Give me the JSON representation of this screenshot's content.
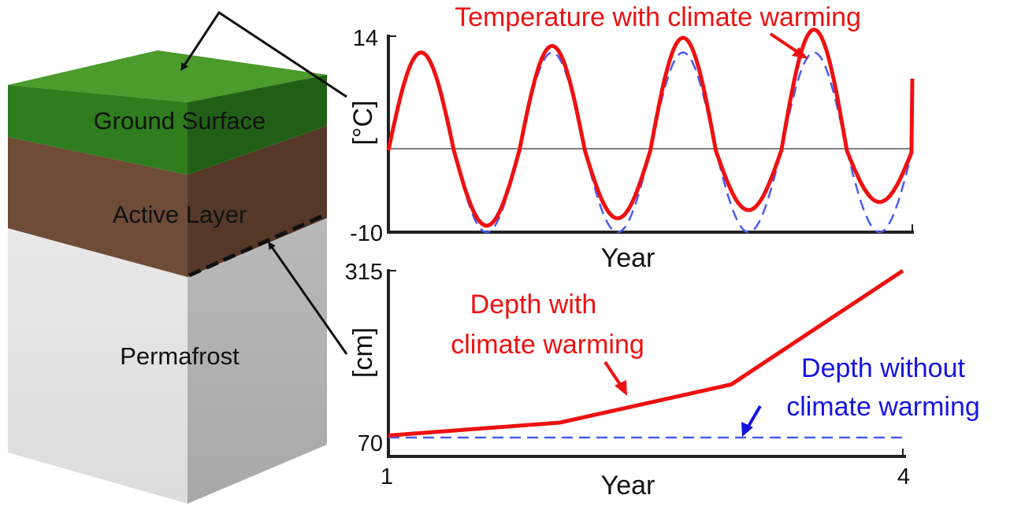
{
  "block": {
    "layers": [
      {
        "label": "Ground Surface",
        "color": "#2f7d1e"
      },
      {
        "label": "Active Layer",
        "color": "#6b4a36"
      },
      {
        "label": "Permafrost",
        "color": "#dcdcdc"
      }
    ]
  },
  "colors": {
    "warming": "#ee1111",
    "no_warming": "#4a5cf0",
    "axis": "#222222"
  },
  "chart_data": [
    {
      "type": "line",
      "title": "Temperature with climate warming",
      "xlabel": "Year",
      "ylabel": "[°C]",
      "ylim": [
        -10,
        14
      ],
      "yticks": [
        "14",
        "-10"
      ],
      "x_period_years": 1,
      "series": [
        {
          "name": "Temperature with climate warming",
          "style": "solid",
          "color": "#ee1111",
          "peaks": [
            12,
            12.8,
            13.8,
            14.8
          ],
          "troughs": [
            -9.2,
            -8.3,
            -7.3,
            -6.3
          ],
          "end_value": 8.8
        },
        {
          "name": "",
          "style": "dashed",
          "color": "#4a5cf0",
          "peaks": [
            12,
            12,
            12,
            12
          ],
          "troughs": [
            -10,
            -10,
            -10,
            -10
          ],
          "end_value": 0
        }
      ],
      "zero_line": true
    },
    {
      "type": "line",
      "xlabel": "Year",
      "ylabel": "[cm]",
      "ylim": [
        70,
        315
      ],
      "yticks": [
        "315",
        "70"
      ],
      "xticks": [
        "1",
        "4"
      ],
      "series": [
        {
          "name": "Depth with climate warming",
          "style": "solid",
          "color": "#ee1111",
          "x": [
            1,
            2,
            3,
            4
          ],
          "values": [
            73,
            92,
            148,
            315
          ]
        },
        {
          "name": "Depth without climate warming",
          "style": "dashed",
          "color": "#4a5cf0",
          "x": [
            1,
            2,
            3,
            4
          ],
          "values": [
            70,
            70,
            70,
            70
          ]
        }
      ],
      "annotations": [
        {
          "text_lines": [
            "Depth with",
            "climate warming"
          ],
          "color": "#ee1111"
        },
        {
          "text_lines": [
            "Depth without",
            "climate warming"
          ],
          "color": "#1515e0"
        }
      ]
    }
  ]
}
